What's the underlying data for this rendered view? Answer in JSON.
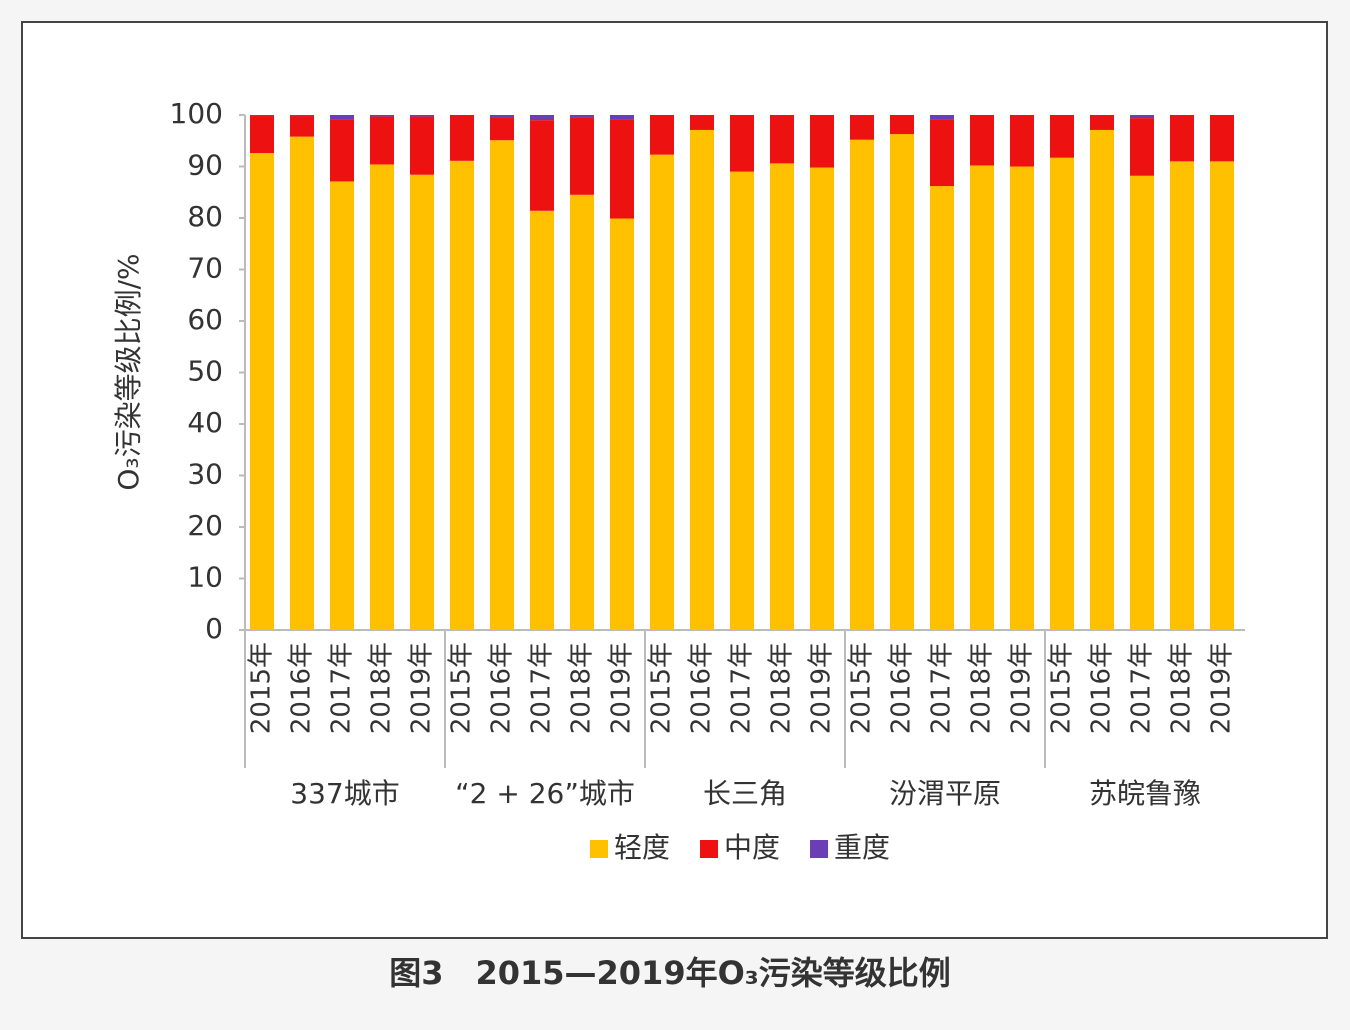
{
  "chart_data": {
    "type": "stacked_bar",
    "ylabel": "O₃污染等级比例/%",
    "caption": "图3　2015—2019年O₃污染等级比例",
    "categories": [
      "2015年",
      "2016年",
      "2017年",
      "2018年",
      "2019年",
      "2015年",
      "2016年",
      "2017年",
      "2018年",
      "2019年",
      "2015年",
      "2016年",
      "2017年",
      "2018年",
      "2019年",
      "2015年",
      "2016年",
      "2017年",
      "2018年",
      "2019年",
      "2015年",
      "2016年",
      "2017年",
      "2018年",
      "2019年"
    ],
    "groups": [
      "337城市",
      "“2 + 26”城市",
      "长三角",
      "汾渭平原",
      "苏皖鲁豫"
    ],
    "series": [
      {
        "name": "轻度",
        "color": "#ffc000",
        "values": [
          92.6,
          95.8,
          87.1,
          90.4,
          88.4,
          91.1,
          95.1,
          81.4,
          84.5,
          79.9,
          92.3,
          97.1,
          89.0,
          90.6,
          89.8,
          95.2,
          96.3,
          86.2,
          90.2,
          90.0,
          91.7,
          97.1,
          88.2,
          91.0,
          91.0
        ]
      },
      {
        "name": "中度",
        "color": "#ee1111",
        "values": [
          7.2,
          4.0,
          12.1,
          9.3,
          11.3,
          8.9,
          4.5,
          17.6,
          15.0,
          19.3,
          7.7,
          2.9,
          11.0,
          9.4,
          10.2,
          4.8,
          3.7,
          13.0,
          9.8,
          10.0,
          8.3,
          2.9,
          11.2,
          9.0,
          9.0
        ]
      },
      {
        "name": "重度",
        "color": "#6a3fb5",
        "values": [
          0.2,
          0.2,
          0.8,
          0.3,
          0.3,
          0,
          0.4,
          1.0,
          0.5,
          0.8,
          0,
          0,
          0,
          0,
          0,
          0,
          0,
          0.8,
          0,
          0,
          0,
          0,
          0.6,
          0,
          0
        ]
      }
    ],
    "ylim": [
      0,
      100
    ],
    "yticks": [
      0,
      10,
      20,
      30,
      40,
      50,
      60,
      70,
      80,
      90,
      100
    ]
  }
}
